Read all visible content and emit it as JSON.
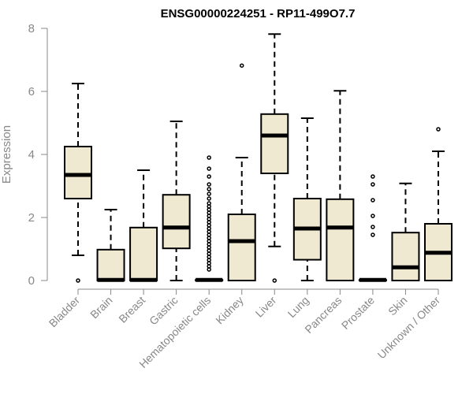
{
  "chart_data": {
    "type": "boxplot",
    "title": "ENSG00000224251 - RP11-499O7.7",
    "ylabel": "Expression",
    "xlabel": "",
    "ylim": [
      0,
      8
    ],
    "yticks": [
      0,
      2,
      4,
      6,
      8
    ],
    "box_color": "#efe9d1",
    "axis_color": "#888888",
    "categories": [
      "Bladder",
      "Brain",
      "Breast",
      "Gastric",
      "Hematopoietic cells",
      "Kidney",
      "Liver",
      "Lung",
      "Pancreas",
      "Prostate",
      "Skin",
      "Unknown / Other"
    ],
    "boxes": [
      {
        "min": 0.8,
        "q1": 2.6,
        "median": 3.35,
        "q3": 4.25,
        "max": 6.25,
        "outliers": [
          0.0
        ]
      },
      {
        "min": 0.0,
        "q1": 0.0,
        "median": 0.02,
        "q3": 0.98,
        "max": 2.25,
        "outliers": []
      },
      {
        "min": 0.0,
        "q1": 0.0,
        "median": 0.02,
        "q3": 1.68,
        "max": 3.5,
        "outliers": []
      },
      {
        "min": 0.0,
        "q1": 1.02,
        "median": 1.68,
        "q3": 2.72,
        "max": 5.05,
        "outliers": []
      },
      {
        "min": 0.0,
        "q1": 0.0,
        "median": 0.02,
        "q3": 0.02,
        "max": 0.05,
        "outliers": [
          0.35,
          0.45,
          0.55,
          0.65,
          0.75,
          0.85,
          0.95,
          1.05,
          1.15,
          1.25,
          1.35,
          1.45,
          1.55,
          1.65,
          1.75,
          1.85,
          1.95,
          2.05,
          2.15,
          2.25,
          2.35,
          2.45,
          2.6,
          2.75,
          2.9,
          3.05,
          3.3,
          3.55,
          3.9
        ]
      },
      {
        "min": 0.0,
        "q1": 0.0,
        "median": 1.25,
        "q3": 2.1,
        "max": 3.9,
        "outliers": [
          6.82
        ]
      },
      {
        "min": 1.08,
        "q1": 3.4,
        "median": 4.6,
        "q3": 5.28,
        "max": 7.82,
        "outliers": [
          0.0
        ]
      },
      {
        "min": 0.0,
        "q1": 0.66,
        "median": 1.65,
        "q3": 2.6,
        "max": 5.15,
        "outliers": []
      },
      {
        "min": 0.0,
        "q1": 0.0,
        "median": 1.68,
        "q3": 2.58,
        "max": 6.02,
        "outliers": []
      },
      {
        "min": 0.0,
        "q1": 0.0,
        "median": 0.02,
        "q3": 0.02,
        "max": 0.05,
        "outliers": [
          1.45,
          1.7,
          2.05,
          2.55,
          3.05,
          3.3
        ]
      },
      {
        "min": 0.0,
        "q1": 0.0,
        "median": 0.42,
        "q3": 1.52,
        "max": 3.08,
        "outliers": []
      },
      {
        "min": 0.0,
        "q1": 0.0,
        "median": 0.88,
        "q3": 1.8,
        "max": 4.1,
        "outliers": [
          4.8
        ]
      }
    ]
  }
}
